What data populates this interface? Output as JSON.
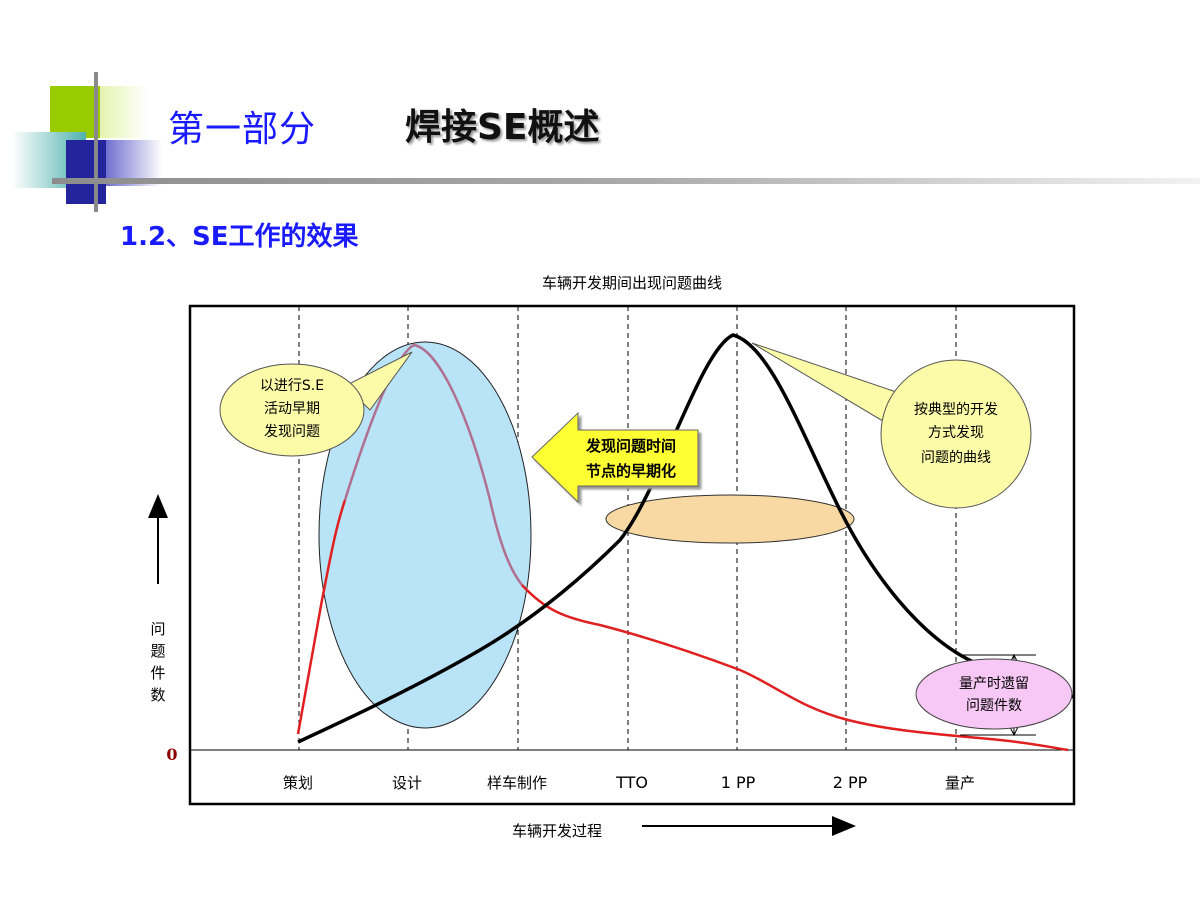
{
  "header": {
    "part_label": "第一部分",
    "main_title": "焊接SE概述"
  },
  "section": {
    "subtitle": "1.2、SE工作的效果"
  },
  "chart": {
    "title": "车辆开发期间出现问题曲线",
    "y_axis_label": "问题件数",
    "zero_label": "0",
    "x_axis_label": "车辆开发过程",
    "stages": [
      "策划",
      "设计",
      "样车制作",
      "TTO",
      "1 PP",
      "2 PP",
      "量产"
    ],
    "callouts": {
      "se_early": [
        "以进行S.E",
        "活动早期",
        "发现问题"
      ],
      "typical": [
        "按典型的开发",
        "方式发现",
        "问题的曲线"
      ],
      "shift_arrow": [
        "发现问题时间",
        "节点的早期化"
      ],
      "residual": [
        "量产时遗留",
        "问题件数"
      ]
    },
    "colors": {
      "se_curve": "#e02020",
      "se_curve_upper": "#b07090",
      "typical_curve": "#000000",
      "ellipse_fill": "#b9e3f7",
      "callout_fill": "#fbfba8",
      "arrow_fill": "#ffff33",
      "peak_band_fill": "#f8d9a4",
      "residual_fill": "#f7c8f5",
      "zero_color": "#8b0000"
    }
  },
  "chart_data": {
    "type": "line",
    "title": "车辆开发期间出现问题曲线",
    "xlabel": "车辆开发过程",
    "ylabel": "问题件数",
    "categories": [
      "策划",
      "设计",
      "样车制作",
      "TTO",
      "1 PP",
      "2 PP",
      "量产"
    ],
    "series": [
      {
        "values": [
          0.03,
          1.0,
          0.45,
          0.3,
          0.21,
          0.07,
          0.04
        ]
      },
      {
        "values": [
          0.02,
          0.15,
          0.3,
          0.55,
          1.0,
          0.55,
          0.2
        ]
      }
    ],
    "ylim": [
      0,
      1.02
    ],
    "grid": "vertical dashed at stage boundaries"
  }
}
